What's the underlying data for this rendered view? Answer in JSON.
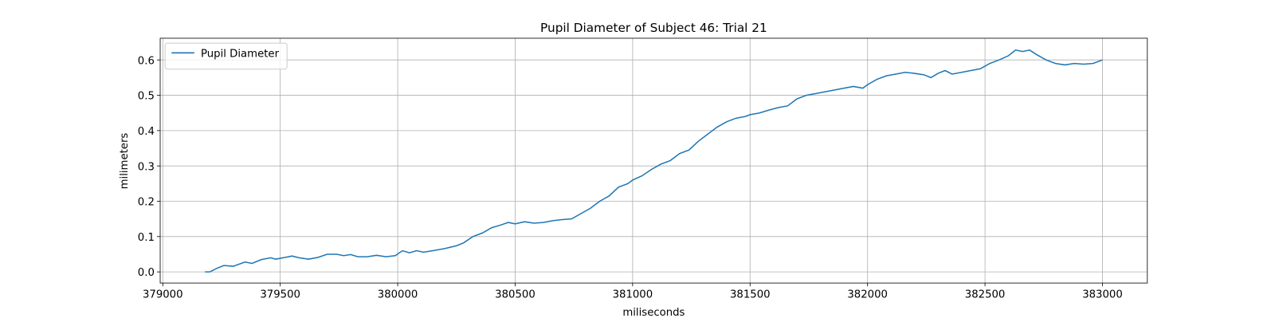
{
  "chart_data": {
    "type": "line",
    "title": "Pupil Diameter of Subject 46: Trial 21",
    "xlabel": "miliseconds",
    "ylabel": "milimeters",
    "x": [
      379180,
      379200,
      379230,
      379260,
      379300,
      379350,
      379380,
      379420,
      379460,
      379480,
      379520,
      379550,
      379580,
      379620,
      379660,
      379700,
      379740,
      379770,
      379800,
      379830,
      379870,
      379910,
      379950,
      379990,
      380020,
      380050,
      380080,
      380110,
      380150,
      380200,
      380250,
      380280,
      380320,
      380360,
      380400,
      380440,
      380470,
      380500,
      380540,
      380580,
      380620,
      380660,
      380700,
      380740,
      380780,
      380820,
      380860,
      380900,
      380940,
      380980,
      381000,
      381040,
      381080,
      381120,
      381160,
      381200,
      381240,
      381280,
      381320,
      381360,
      381400,
      381440,
      381480,
      381500,
      381540,
      381580,
      381620,
      381660,
      381700,
      381740,
      381780,
      381820,
      381860,
      381900,
      381940,
      381980,
      382000,
      382040,
      382080,
      382120,
      382160,
      382200,
      382240,
      382270,
      382300,
      382330,
      382360,
      382400,
      382440,
      382480,
      382520,
      382560,
      382600,
      382630,
      382660,
      382690,
      382720,
      382760,
      382800,
      382840,
      382880,
      382920,
      382960,
      383000
    ],
    "series": [
      {
        "name": "Pupil Diameter",
        "color": "#1f77b4",
        "values": [
          0,
          0,
          0.01,
          0.018,
          0.016,
          0.028,
          0.024,
          0.035,
          0.04,
          0.036,
          0.041,
          0.045,
          0.04,
          0.036,
          0.041,
          0.05,
          0.05,
          0.046,
          0.049,
          0.043,
          0.043,
          0.047,
          0.043,
          0.046,
          0.06,
          0.054,
          0.06,
          0.056,
          0.06,
          0.066,
          0.074,
          0.082,
          0.1,
          0.11,
          0.125,
          0.133,
          0.14,
          0.136,
          0.142,
          0.138,
          0.14,
          0.145,
          0.148,
          0.15,
          0.165,
          0.18,
          0.2,
          0.215,
          0.24,
          0.25,
          0.26,
          0.272,
          0.29,
          0.305,
          0.315,
          0.335,
          0.345,
          0.37,
          0.39,
          0.41,
          0.425,
          0.435,
          0.44,
          0.445,
          0.45,
          0.458,
          0.465,
          0.47,
          0.49,
          0.5,
          0.505,
          0.51,
          0.515,
          0.52,
          0.525,
          0.52,
          0.53,
          0.545,
          0.555,
          0.56,
          0.565,
          0.562,
          0.558,
          0.55,
          0.562,
          0.57,
          0.56,
          0.565,
          0.57,
          0.575,
          0.59,
          0.6,
          0.612,
          0.628,
          0.624,
          0.628,
          0.615,
          0.6,
          0.59,
          0.586,
          0.59,
          0.588,
          0.59,
          0.6
        ]
      }
    ],
    "xlim": [
      378989,
      383191
    ],
    "ylim": [
      -0.0315,
      0.6615
    ],
    "xticks": [
      379000,
      379500,
      380000,
      380500,
      381000,
      381500,
      382000,
      382500,
      383000
    ],
    "yticks": [
      {
        "value": 0,
        "label": "0.0"
      },
      0.1,
      0.2,
      0.3,
      0.4,
      0.5,
      0.6
    ],
    "grid": true,
    "legend": "upper-left"
  }
}
